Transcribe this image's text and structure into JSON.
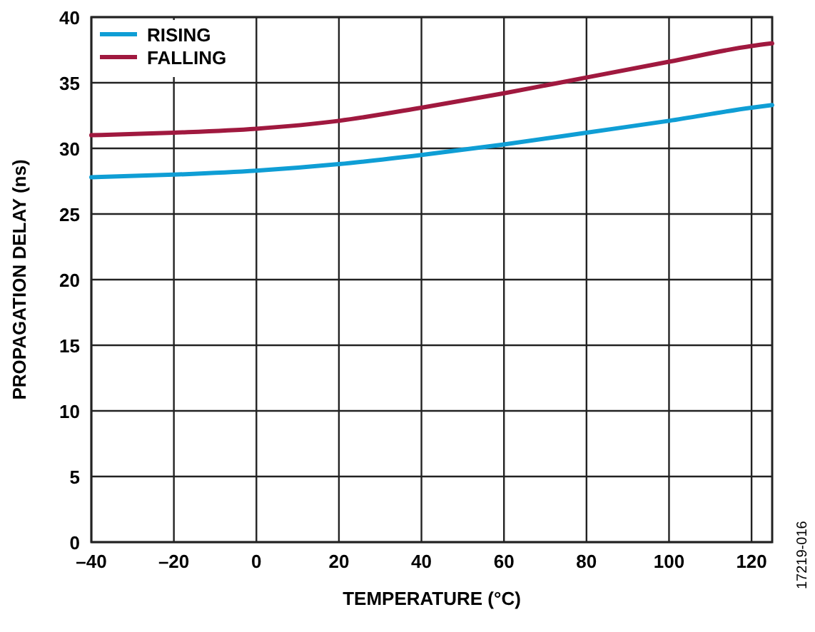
{
  "chart_data": {
    "type": "line",
    "xlabel": "TEMPERATURE (°C)",
    "ylabel": "PROPAGATION DELAY (ns)",
    "x": [
      -40,
      -20,
      0,
      20,
      40,
      60,
      80,
      100,
      120,
      125
    ],
    "series": [
      {
        "name": "RISING",
        "color": "#0f9ed5",
        "values": [
          27.8,
          28.0,
          28.3,
          28.8,
          29.5,
          30.3,
          31.2,
          32.1,
          33.1,
          33.3
        ]
      },
      {
        "name": "FALLING",
        "color": "#a0193f",
        "values": [
          31.0,
          31.2,
          31.5,
          32.1,
          33.1,
          34.2,
          35.4,
          36.6,
          37.8,
          38.0
        ]
      }
    ],
    "xlim": [
      -40,
      125
    ],
    "xticks": [
      {
        "value": -40,
        "label": "–40"
      },
      {
        "value": -20,
        "label": "–20"
      },
      0,
      20,
      40,
      60,
      80,
      100,
      120
    ],
    "ylim": [
      0,
      40
    ],
    "yticks": [
      0,
      5,
      10,
      15,
      20,
      25,
      30,
      35,
      40
    ],
    "grid": true,
    "legend": "top left",
    "line_style": "solid",
    "annotations": [
      "17219-016"
    ]
  }
}
